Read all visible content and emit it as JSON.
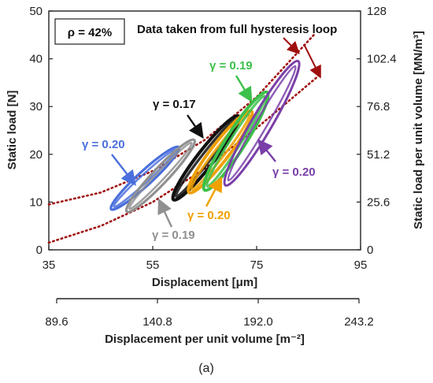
{
  "chart_data": {
    "type": "line",
    "panel_label": "(a)",
    "info_box": "ρ = 42%",
    "note": "Data taken from full hysteresis loop",
    "x_axis": {
      "label": "Displacement [μm]",
      "range": [
        35,
        95
      ],
      "ticks": [
        "35",
        "55",
        "75",
        "95"
      ]
    },
    "x2_axis": {
      "label": "Displacement per unit volume [m⁻²]",
      "range": [
        89.6,
        243.2
      ],
      "ticks": [
        "89.6",
        "140.8",
        "192.0",
        "243.2"
      ]
    },
    "y_axis": {
      "label": "Static load [N]",
      "range": [
        0,
        50
      ],
      "ticks": [
        "0",
        "10",
        "20",
        "30",
        "40",
        "50"
      ]
    },
    "y2_axis": {
      "label": "Static load per unit volume [MN/m³]",
      "range": [
        0,
        128
      ],
      "ticks": [
        "0",
        "25.6",
        "51.2",
        "76.8",
        "102.4",
        "128"
      ]
    },
    "series": [
      {
        "color": "#4a6fdc",
        "label": "γ = 0.20",
        "loop": [
          [
            47,
            8.5
          ],
          [
            60,
            21.5
          ]
        ],
        "thickness": 3.2
      },
      {
        "color": "#909090",
        "label": "γ = 0.19",
        "loop": [
          [
            50,
            8
          ],
          [
            63,
            23
          ]
        ],
        "thickness": 3.2
      },
      {
        "color": "#111111",
        "label": "γ = 0.17",
        "loop": [
          [
            59,
            10.5
          ],
          [
            71.5,
            28
          ]
        ],
        "thickness": 4.2
      },
      {
        "color": "#f0a000",
        "label": "γ = 0.20",
        "loop": [
          [
            62,
            12
          ],
          [
            74,
            29
          ]
        ],
        "thickness": 4.0
      },
      {
        "color": "#3cc04a",
        "label": "γ = 0.19",
        "loop": [
          [
            65,
            12.5
          ],
          [
            77,
            33
          ]
        ],
        "thickness": 4.0
      },
      {
        "color": "#7a3fa8",
        "label": "γ = 0.20",
        "loop": [
          [
            69,
            13.5
          ],
          [
            83,
            39.5
          ]
        ],
        "thickness": 3.0
      }
    ],
    "trend_curves": [
      {
        "color": "#a01010",
        "style": "dotted",
        "points": [
          [
            35,
            9.5
          ],
          [
            45,
            12
          ],
          [
            55,
            16.5
          ],
          [
            65,
            23
          ],
          [
            75,
            32
          ],
          [
            86,
            45
          ]
        ]
      },
      {
        "color": "#a01010",
        "style": "dotted",
        "points": [
          [
            35,
            1.5
          ],
          [
            45,
            5
          ],
          [
            55,
            10
          ],
          [
            65,
            17
          ],
          [
            75,
            25.5
          ],
          [
            87,
            36.5
          ]
        ]
      }
    ],
    "grid": false
  }
}
